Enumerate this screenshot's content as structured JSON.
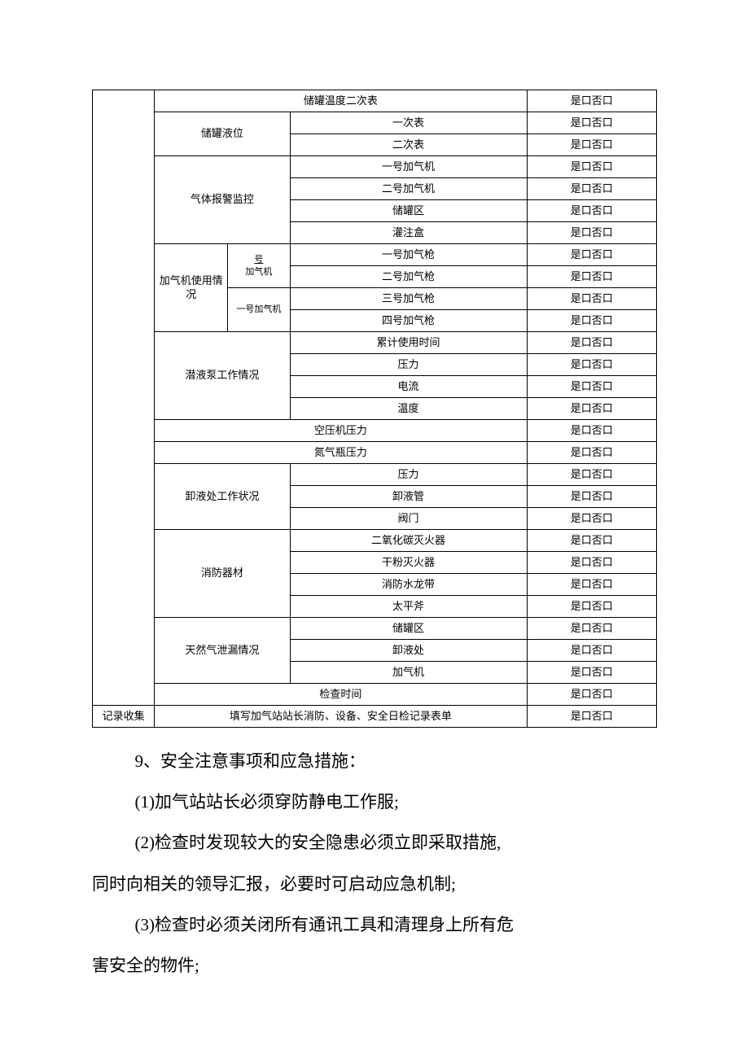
{
  "yesno": "是口否口",
  "table": {
    "r1": "储罐温度二次表",
    "r2g": "储罐液位",
    "r2a": "一次表",
    "r3a": "二次表",
    "r4g": "气体报警监控",
    "r4a": "一号加气机",
    "r5a": "二号加气机",
    "r6a": "储罐区",
    "r7a": "灌注盒",
    "r8g": "加气机使用情况",
    "r8sub1": "号",
    "r8sub1b": "加气机",
    "r8sub2": "一号加气机",
    "r8a": "一号加气枪",
    "r9a": "二号加气枪",
    "r10a": "三号加气枪",
    "r11a": "四号加气枪",
    "r12g": "潜液泵工作情况",
    "r12a": "累计使用时间",
    "r13a": "压力",
    "r14a": "电流",
    "r15a": "温度",
    "r16": "空压机压力",
    "r17": "氮气瓶压力",
    "r18g": "卸液处工作状况",
    "r18a": "压力",
    "r19a": "卸液管",
    "r20a": "阀门",
    "r21g": "消防器材",
    "r21a": "二氧化碳灭火器",
    "r22a": "干粉灭火器",
    "r23a": "消防水龙带",
    "r24a": "太平斧",
    "r25g": "天然气泄漏情况",
    "r25a": "储罐区",
    "r26a": "卸液处",
    "r27a": "加气机",
    "r28": "检查时间",
    "r29left": "记录收集",
    "r29": "填写加气站站长消防、设备、安全日检记录表单"
  },
  "body": {
    "h": "9、安全注意事项和应急措施：",
    "p1": "(1)加气站站长必须穿防静电工作服;",
    "p2a": "(2)检查时发现较大的安全隐患必须立即采取措施,",
    "p2b": "同时向相关的领导汇报，必要时可启动应急机制;",
    "p3a": "(3)检查时必须关闭所有通讯工具和清理身上所有危",
    "p3b": "害安全的物件;"
  }
}
